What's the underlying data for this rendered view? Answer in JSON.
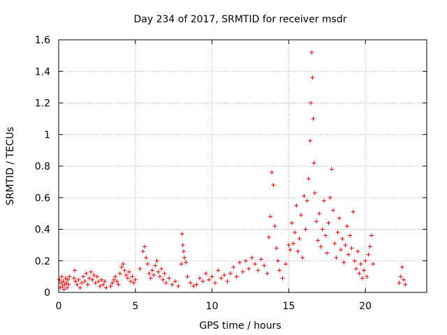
{
  "chart_data": {
    "type": "scatter",
    "title": "Day 234 of 2017, SRMTID for receiver msdr",
    "xlabel": "GPS time / hours",
    "ylabel": "SRMTID / TECUs",
    "xlim": [
      0,
      24
    ],
    "ylim": [
      0,
      1.6
    ],
    "xticks": [
      0,
      5,
      10,
      15,
      20
    ],
    "xtick_labels": [
      "0",
      "5",
      "10",
      "15",
      "20"
    ],
    "yticks": [
      0,
      0.2,
      0.4,
      0.6,
      0.8,
      1.0,
      1.2,
      1.4,
      1.6
    ],
    "ytick_labels": [
      "0",
      "0.2",
      "0.4",
      "0.6",
      "0.8",
      "1",
      "1.2",
      "1.4",
      "1.6"
    ],
    "grid": true,
    "marker": "+",
    "color": "#e00000",
    "series": [
      {
        "name": "msdr",
        "points": [
          [
            0.05,
            0.08
          ],
          [
            0.1,
            0.03
          ],
          [
            0.15,
            0.06
          ],
          [
            0.2,
            0.1
          ],
          [
            0.25,
            0.04
          ],
          [
            0.3,
            0.07
          ],
          [
            0.35,
            0.02
          ],
          [
            0.4,
            0.05
          ],
          [
            0.45,
            0.09
          ],
          [
            0.5,
            0.06
          ],
          [
            0.55,
            0.03
          ],
          [
            0.6,
            0.08
          ],
          [
            0.65,
            0.05
          ],
          [
            0.7,
            0.1
          ],
          [
            1.0,
            0.09
          ],
          [
            1.05,
            0.14
          ],
          [
            1.1,
            0.07
          ],
          [
            1.2,
            0.05
          ],
          [
            1.3,
            0.08
          ],
          [
            1.4,
            0.03
          ],
          [
            1.5,
            0.06
          ],
          [
            1.6,
            0.1
          ],
          [
            1.7,
            0.07
          ],
          [
            1.8,
            0.12
          ],
          [
            1.9,
            0.05
          ],
          [
            2.0,
            0.09
          ],
          [
            2.1,
            0.13
          ],
          [
            2.2,
            0.08
          ],
          [
            2.3,
            0.11
          ],
          [
            2.4,
            0.06
          ],
          [
            2.5,
            0.1
          ],
          [
            2.6,
            0.07
          ],
          [
            2.7,
            0.04
          ],
          [
            2.8,
            0.08
          ],
          [
            2.9,
            0.05
          ],
          [
            3.0,
            0.07
          ],
          [
            3.1,
            0.03
          ],
          [
            3.4,
            0.04
          ],
          [
            3.5,
            0.06
          ],
          [
            3.6,
            0.08
          ],
          [
            3.7,
            0.1
          ],
          [
            3.8,
            0.07
          ],
          [
            3.9,
            0.05
          ],
          [
            4.0,
            0.12
          ],
          [
            4.1,
            0.16
          ],
          [
            4.2,
            0.18
          ],
          [
            4.3,
            0.14
          ],
          [
            4.4,
            0.11
          ],
          [
            4.5,
            0.09
          ],
          [
            4.6,
            0.13
          ],
          [
            4.7,
            0.07
          ],
          [
            4.8,
            0.1
          ],
          [
            4.9,
            0.06
          ],
          [
            5.0,
            0.08
          ],
          [
            5.3,
            0.15
          ],
          [
            5.5,
            0.26
          ],
          [
            5.6,
            0.29
          ],
          [
            5.7,
            0.22
          ],
          [
            5.8,
            0.18
          ],
          [
            5.9,
            0.12
          ],
          [
            6.0,
            0.09
          ],
          [
            6.1,
            0.14
          ],
          [
            6.2,
            0.11
          ],
          [
            6.3,
            0.17
          ],
          [
            6.4,
            0.2
          ],
          [
            6.5,
            0.13
          ],
          [
            6.6,
            0.1
          ],
          [
            6.7,
            0.15
          ],
          [
            6.8,
            0.08
          ],
          [
            6.9,
            0.12
          ],
          [
            7.0,
            0.06
          ],
          [
            7.2,
            0.09
          ],
          [
            7.4,
            0.05
          ],
          [
            7.6,
            0.07
          ],
          [
            7.8,
            0.04
          ],
          [
            8.0,
            0.18
          ],
          [
            8.05,
            0.37
          ],
          [
            8.1,
            0.3
          ],
          [
            8.15,
            0.26
          ],
          [
            8.2,
            0.22
          ],
          [
            8.3,
            0.19
          ],
          [
            8.4,
            0.1
          ],
          [
            8.6,
            0.06
          ],
          [
            8.8,
            0.04
          ],
          [
            9.0,
            0.05
          ],
          [
            9.2,
            0.09
          ],
          [
            9.4,
            0.07
          ],
          [
            9.6,
            0.12
          ],
          [
            9.8,
            0.08
          ],
          [
            10.0,
            0.1
          ],
          [
            10.2,
            0.06
          ],
          [
            10.4,
            0.14
          ],
          [
            10.6,
            0.09
          ],
          [
            10.8,
            0.11
          ],
          [
            11.0,
            0.07
          ],
          [
            11.2,
            0.12
          ],
          [
            11.4,
            0.16
          ],
          [
            11.6,
            0.1
          ],
          [
            11.8,
            0.19
          ],
          [
            12.0,
            0.13
          ],
          [
            12.2,
            0.2
          ],
          [
            12.4,
            0.15
          ],
          [
            12.6,
            0.22
          ],
          [
            12.8,
            0.18
          ],
          [
            13.0,
            0.14
          ],
          [
            13.2,
            0.21
          ],
          [
            13.4,
            0.17
          ],
          [
            13.6,
            0.12
          ],
          [
            13.7,
            0.35
          ],
          [
            13.8,
            0.48
          ],
          [
            13.9,
            0.76
          ],
          [
            14.0,
            0.68
          ],
          [
            14.1,
            0.42
          ],
          [
            14.2,
            0.28
          ],
          [
            14.3,
            0.2
          ],
          [
            14.4,
            0.14
          ],
          [
            14.6,
            0.09
          ],
          [
            14.8,
            0.18
          ],
          [
            15.0,
            0.3
          ],
          [
            15.1,
            0.27
          ],
          [
            15.2,
            0.44
          ],
          [
            15.3,
            0.31
          ],
          [
            15.4,
            0.38
          ],
          [
            15.5,
            0.55
          ],
          [
            15.6,
            0.26
          ],
          [
            15.7,
            0.34
          ],
          [
            15.8,
            0.49
          ],
          [
            15.9,
            0.22
          ],
          [
            16.0,
            0.61
          ],
          [
            16.1,
            0.4
          ],
          [
            16.2,
            0.58
          ],
          [
            16.3,
            0.72
          ],
          [
            16.4,
            0.96
          ],
          [
            16.45,
            1.2
          ],
          [
            16.5,
            1.52
          ],
          [
            16.55,
            1.36
          ],
          [
            16.6,
            1.1
          ],
          [
            16.65,
            0.82
          ],
          [
            16.7,
            0.63
          ],
          [
            16.8,
            0.45
          ],
          [
            16.9,
            0.33
          ],
          [
            17.0,
            0.5
          ],
          [
            17.1,
            0.29
          ],
          [
            17.2,
            0.4
          ],
          [
            17.3,
            0.58
          ],
          [
            17.4,
            0.36
          ],
          [
            17.5,
            0.25
          ],
          [
            17.6,
            0.44
          ],
          [
            17.7,
            0.6
          ],
          [
            17.8,
            0.78
          ],
          [
            17.9,
            0.52
          ],
          [
            18.0,
            0.31
          ],
          [
            18.1,
            0.22
          ],
          [
            18.2,
            0.38
          ],
          [
            18.3,
            0.47
          ],
          [
            18.4,
            0.27
          ],
          [
            18.5,
            0.34
          ],
          [
            18.6,
            0.19
          ],
          [
            18.7,
            0.3
          ],
          [
            18.8,
            0.42
          ],
          [
            18.9,
            0.24
          ],
          [
            19.0,
            0.36
          ],
          [
            19.1,
            0.28
          ],
          [
            19.2,
            0.51
          ],
          [
            19.3,
            0.2
          ],
          [
            19.4,
            0.15
          ],
          [
            19.5,
            0.26
          ],
          [
            19.6,
            0.12
          ],
          [
            19.7,
            0.18
          ],
          [
            19.8,
            0.09
          ],
          [
            19.9,
            0.14
          ],
          [
            20.0,
            0.2
          ],
          [
            20.1,
            0.1
          ],
          [
            20.2,
            0.24
          ],
          [
            20.3,
            0.29
          ],
          [
            20.4,
            0.36
          ],
          [
            20.5,
            0.18
          ],
          [
            22.2,
            0.06
          ],
          [
            22.3,
            0.1
          ],
          [
            22.4,
            0.16
          ],
          [
            22.5,
            0.08
          ],
          [
            22.6,
            0.05
          ]
        ]
      }
    ]
  }
}
